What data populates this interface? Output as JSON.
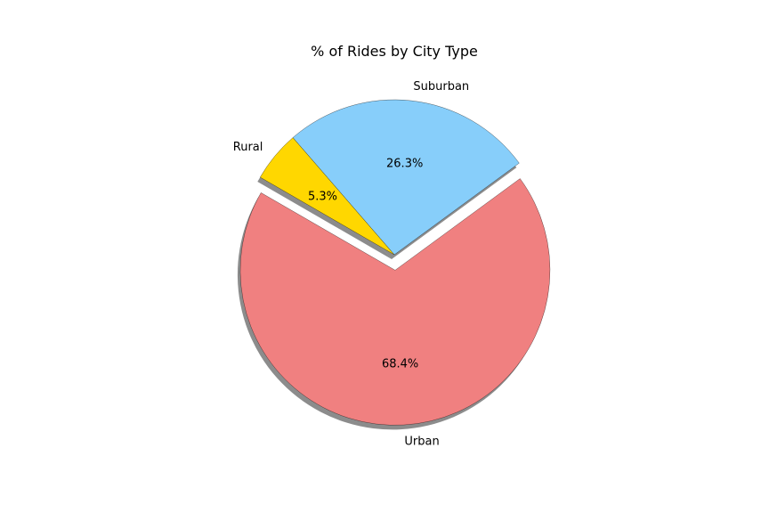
{
  "chart_data": {
    "type": "pie",
    "title": "% of Rides by City Type",
    "categories": [
      "Urban",
      "Suburban",
      "Rural"
    ],
    "values": [
      68.4,
      26.3,
      5.3
    ],
    "percent_labels": [
      "68.4%",
      "26.3%",
      "5.3%"
    ],
    "colors": [
      "#f08080",
      "#87cefa",
      "#ffd700"
    ],
    "explode": [
      0.1,
      0,
      0
    ],
    "start_angle_deg": 150,
    "shadow": true,
    "edge_color": "#000000"
  }
}
